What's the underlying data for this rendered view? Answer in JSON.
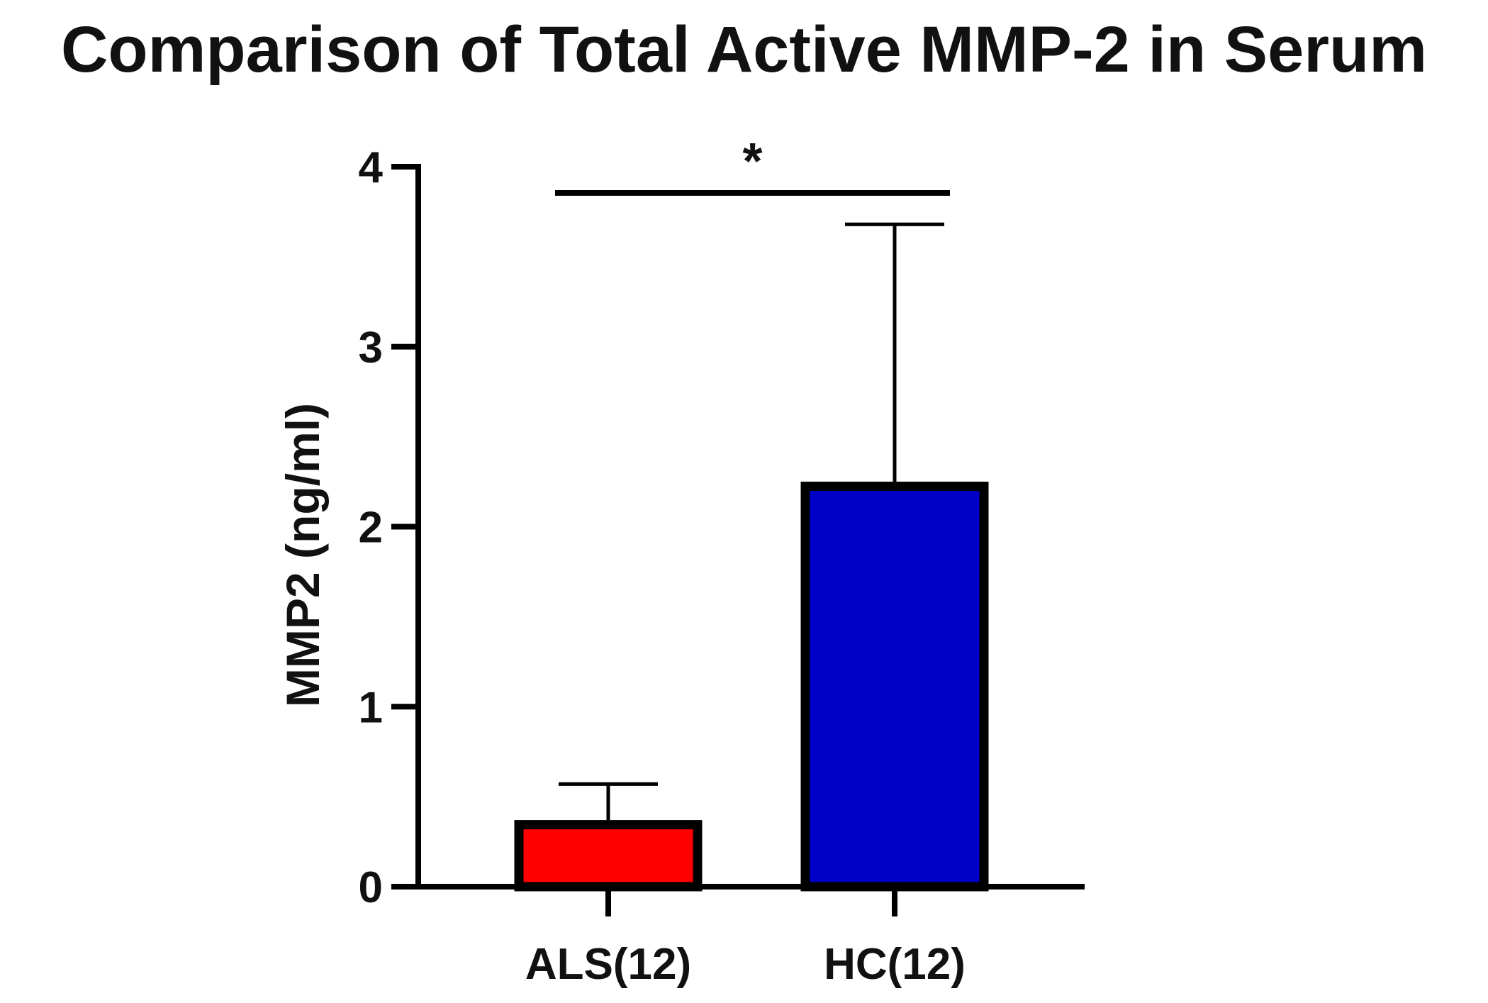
{
  "chart_data": {
    "type": "bar",
    "title": "Comparison of Total Active MMP-2 in Serum",
    "xlabel": "",
    "ylabel": "MMP2 (ng/ml)",
    "ylim": [
      0,
      4
    ],
    "yticks": [
      0,
      1,
      2,
      3,
      4
    ],
    "categories": [
      "ALS(12)",
      "HC(12)"
    ],
    "values": [
      0.37,
      2.25
    ],
    "errors_upper": [
      0.2,
      1.43
    ],
    "colors": [
      "#ff0000",
      "#0000c8"
    ],
    "grid": false,
    "significance": {
      "pair": [
        0,
        1
      ],
      "label": "*"
    }
  }
}
